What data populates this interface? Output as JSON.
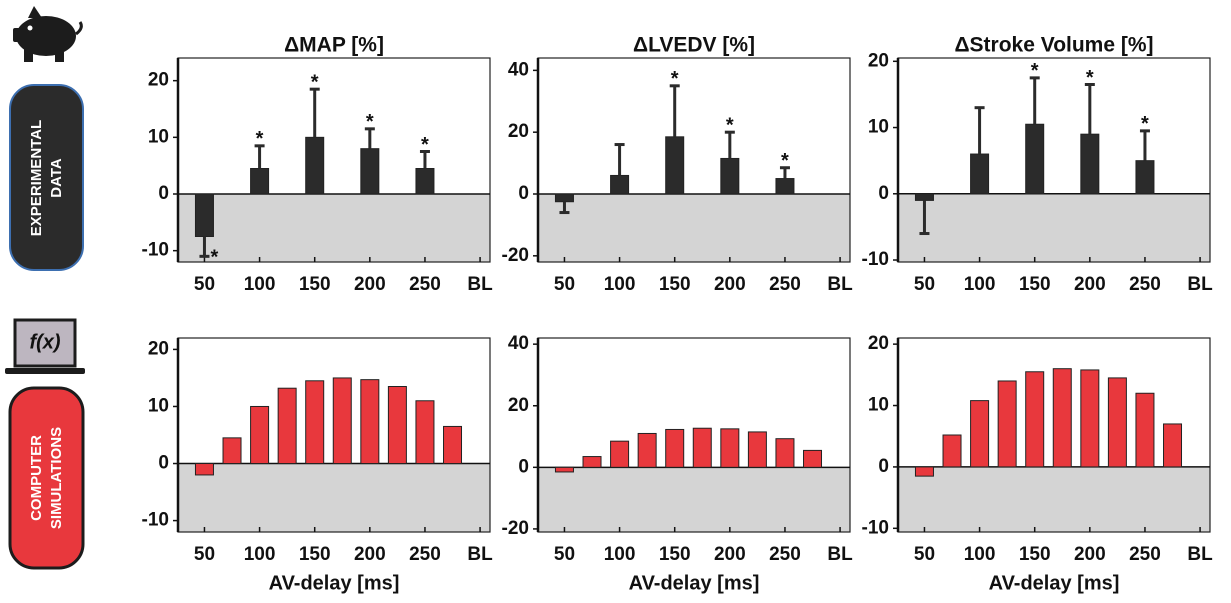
{
  "labels": {
    "experimental": [
      "EXPERIMENTAL",
      "DATA"
    ],
    "simulation": [
      "COMPUTER",
      "SIMULATIONS"
    ],
    "model_icon": "f(x)"
  },
  "chart_data": [
    {
      "type": "bar",
      "title": "ΔMAP [%]",
      "x": [
        50,
        100,
        150,
        200,
        250
      ],
      "values": [
        -7.5,
        4.5,
        10,
        8,
        4.5
      ],
      "errors": [
        3.5,
        4,
        8.5,
        3.5,
        3
      ],
      "significance": [
        "*",
        "*",
        "*",
        "*",
        "*"
      ],
      "color": "#2b2b2b",
      "xlim": [
        26,
        309
      ],
      "xticks": [
        50,
        100,
        150,
        200,
        250,
        {
          "value": 300,
          "label": "BL"
        }
      ],
      "ylim": [
        -12,
        24
      ],
      "yticks": [
        -10,
        0,
        10,
        20
      ]
    },
    {
      "type": "bar",
      "title": "ΔLVEDV [%]",
      "x": [
        50,
        100,
        150,
        200,
        250
      ],
      "values": [
        -2.5,
        6,
        18.5,
        11.5,
        5
      ],
      "errors": [
        3.5,
        10,
        16.5,
        8.5,
        3.5
      ],
      "significance": [
        null,
        null,
        "*",
        "*",
        "*"
      ],
      "color": "#2b2b2b",
      "xlim": [
        26,
        309
      ],
      "xticks": [
        50,
        100,
        150,
        200,
        250,
        {
          "value": 300,
          "label": "BL"
        }
      ],
      "ylim": [
        -22,
        44
      ],
      "yticks": [
        -20,
        0,
        20,
        40
      ]
    },
    {
      "type": "bar",
      "title": "ΔStroke Volume [%]",
      "x": [
        50,
        100,
        150,
        200,
        250
      ],
      "values": [
        -1,
        6,
        10.5,
        9,
        5
      ],
      "errors": [
        5,
        7,
        7,
        7.5,
        4.5
      ],
      "significance": [
        null,
        null,
        "*",
        "*",
        "*"
      ],
      "color": "#2b2b2b",
      "xlim": [
        26,
        309
      ],
      "xticks": [
        50,
        100,
        150,
        200,
        250,
        {
          "value": 300,
          "label": "BL"
        }
      ],
      "ylim": [
        -10.3,
        20.5
      ],
      "yticks": [
        -10,
        0,
        10,
        20
      ]
    },
    {
      "type": "bar",
      "xlabel": "AV-delay [ms]",
      "x": [
        50,
        75,
        100,
        125,
        150,
        175,
        200,
        225,
        250,
        275
      ],
      "values": [
        -2,
        4.5,
        10,
        13.2,
        14.5,
        15,
        14.7,
        13.5,
        11,
        6.5
      ],
      "color": "#e8383d",
      "xlim": [
        26,
        309
      ],
      "xticks": [
        50,
        100,
        150,
        200,
        250,
        {
          "value": 300,
          "label": "BL"
        }
      ],
      "ylim": [
        -12,
        22
      ],
      "yticks": [
        -10,
        0,
        10,
        20
      ]
    },
    {
      "type": "bar",
      "xlabel": "AV-delay [ms]",
      "x": [
        50,
        75,
        100,
        125,
        150,
        175,
        200,
        225,
        250,
        275
      ],
      "values": [
        -1.5,
        3.5,
        8.5,
        11,
        12.3,
        12.7,
        12.5,
        11.5,
        9.3,
        5.5
      ],
      "color": "#e8383d",
      "xlim": [
        26,
        309
      ],
      "xticks": [
        50,
        100,
        150,
        200,
        250,
        {
          "value": 300,
          "label": "BL"
        }
      ],
      "ylim": [
        -21,
        42
      ],
      "yticks": [
        -20,
        0,
        20,
        40
      ]
    },
    {
      "type": "bar",
      "xlabel": "AV-delay [ms]",
      "x": [
        50,
        75,
        100,
        125,
        150,
        175,
        200,
        225,
        250,
        275
      ],
      "values": [
        -1.5,
        5.2,
        10.8,
        14,
        15.5,
        16,
        15.8,
        14.5,
        12,
        7
      ],
      "color": "#e8383d",
      "xlim": [
        26,
        309
      ],
      "xticks": [
        50,
        100,
        150,
        200,
        250,
        {
          "value": 300,
          "label": "BL"
        }
      ],
      "ylim": [
        -10.6,
        21
      ],
      "yticks": [
        -10,
        0,
        10,
        20
      ]
    }
  ]
}
